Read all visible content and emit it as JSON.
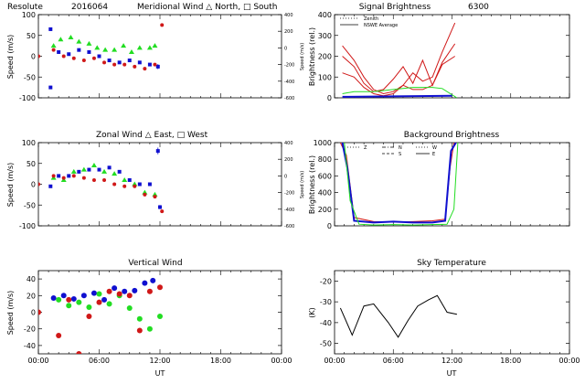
{
  "figure": {
    "site": "Resolute",
    "date": "2016064",
    "xlabel": "UT",
    "xticks": [
      "00:00",
      "06:00",
      "12:00",
      "18:00",
      "00:00"
    ]
  },
  "chart_data": [
    {
      "id": "meridional",
      "type": "scatter",
      "title": "Meridional Wind   △ North, □ South",
      "ylabel": "Speed (m/s)",
      "ylim": [
        -100,
        100
      ],
      "yticks": [
        -100,
        -50,
        0,
        50,
        100
      ],
      "y2label": "Speed (m/s)",
      "y2lim": [
        -600,
        400
      ],
      "y2ticks": [
        -600,
        -400,
        -200,
        0,
        200,
        400
      ],
      "xlim": [
        0,
        24
      ],
      "colors": {
        "zenith": "#d01818",
        "north": "#22dd22",
        "south": "#1010d0"
      },
      "series": [
        {
          "key": "south",
          "marker": "square",
          "x": [
            1.2,
            2.0,
            3.0,
            4.0,
            5.0,
            6.0,
            7.0,
            8.0,
            9.0,
            10.0,
            11.0,
            11.8
          ],
          "y": [
            65,
            10,
            5,
            15,
            10,
            0,
            -10,
            -15,
            -10,
            -15,
            -20,
            -25
          ],
          "y_err": [
            4,
            4,
            3,
            3,
            3,
            3,
            3,
            3,
            3,
            3,
            3,
            6
          ]
        },
        {
          "key": "north",
          "marker": "triangle",
          "x": [
            1.5,
            2.2,
            3.2,
            4.0,
            5.0,
            5.8,
            6.6,
            7.5,
            8.4,
            9.2,
            10.0,
            11.0,
            11.5
          ],
          "y": [
            25,
            40,
            45,
            35,
            30,
            20,
            15,
            15,
            25,
            10,
            20,
            20,
            25
          ]
        },
        {
          "key": "zenith",
          "marker": "circle",
          "x": [
            0.0,
            1.5,
            2.5,
            3.5,
            4.5,
            5.5,
            6.5,
            7.5,
            8.5,
            9.5,
            10.5,
            11.5,
            12.2
          ],
          "y": [
            0,
            15,
            0,
            -5,
            -10,
            -5,
            -15,
            -20,
            -20,
            -25,
            -30,
            -20,
            75
          ]
        },
        {
          "key": "outlier",
          "marker": "square",
          "x": [
            1.2
          ],
          "y": [
            -75
          ],
          "y_err": [
            4
          ]
        }
      ]
    },
    {
      "id": "signal",
      "type": "line",
      "title": "Signal Brightness",
      "wavelength": "6300",
      "ylabel": "Brightness (rel.)",
      "ylim": [
        0,
        400
      ],
      "yticks": [
        0,
        100,
        200,
        300,
        400
      ],
      "xlim": [
        0,
        24
      ],
      "legend": [
        {
          "label": "Zenith",
          "style": "dotted"
        },
        {
          "label": "NSWE Average",
          "style": "solid"
        }
      ],
      "series": [
        {
          "key": "red1",
          "color": "#d01818",
          "x": [
            0.8,
            2,
            3,
            4,
            5,
            6,
            7,
            8,
            9,
            10,
            11,
            12.3
          ],
          "y": [
            250,
            180,
            100,
            40,
            20,
            30,
            60,
            120,
            80,
            100,
            220,
            360
          ]
        },
        {
          "key": "red2",
          "color": "#d01818",
          "x": [
            0.8,
            2,
            3,
            4,
            5,
            6,
            7,
            8,
            9,
            10,
            11,
            12.3
          ],
          "y": [
            200,
            150,
            70,
            30,
            40,
            90,
            150,
            70,
            180,
            60,
            170,
            260
          ]
        },
        {
          "key": "red3",
          "color": "#d01818",
          "x": [
            0.8,
            2,
            3,
            4,
            5,
            6,
            7,
            8,
            9,
            10,
            11,
            12.3
          ],
          "y": [
            120,
            100,
            50,
            20,
            10,
            20,
            60,
            40,
            40,
            60,
            160,
            200
          ]
        },
        {
          "key": "green",
          "color": "#22dd22",
          "x": [
            0.8,
            2,
            4,
            6,
            8,
            10,
            11,
            12.5
          ],
          "y": [
            20,
            30,
            30,
            40,
            50,
            50,
            45,
            0
          ]
        },
        {
          "key": "blue",
          "color": "#1010d0",
          "x": [
            0.8,
            12
          ],
          "y": [
            5,
            10
          ]
        }
      ]
    },
    {
      "id": "zonal",
      "type": "scatter",
      "title": "Zonal Wind      △ East, □ West",
      "ylabel": "Speed (m/s)",
      "ylim": [
        -100,
        100
      ],
      "yticks": [
        -100,
        -50,
        0,
        50,
        100
      ],
      "y2label": "Speed (m/s)",
      "y2lim": [
        -600,
        400
      ],
      "y2ticks": [
        -600,
        -400,
        -200,
        0,
        200,
        400
      ],
      "xlim": [
        0,
        24
      ],
      "colors": {
        "zenith": "#d01818",
        "east": "#22dd22",
        "west": "#1010d0"
      },
      "series": [
        {
          "key": "west",
          "marker": "square",
          "x": [
            1.2,
            2.0,
            3.0,
            4.0,
            5.0,
            6.0,
            7.0,
            8.0,
            9.0,
            10.0,
            11.0,
            11.8
          ],
          "y": [
            -5,
            20,
            20,
            30,
            35,
            35,
            40,
            30,
            10,
            0,
            0,
            80
          ],
          "y_err": [
            3,
            4,
            3,
            3,
            3,
            3,
            3,
            3,
            3,
            3,
            3,
            8
          ]
        },
        {
          "key": "east",
          "marker": "triangle",
          "x": [
            1.5,
            2.5,
            3.5,
            4.5,
            5.5,
            6.5,
            7.5,
            8.5,
            9.5,
            10.5,
            11.5
          ],
          "y": [
            15,
            10,
            30,
            35,
            45,
            30,
            25,
            10,
            0,
            -20,
            -25
          ]
        },
        {
          "key": "zenith",
          "marker": "circle",
          "x": [
            0.0,
            1.5,
            2.5,
            3.5,
            4.5,
            5.5,
            6.5,
            7.5,
            8.5,
            9.5,
            10.5,
            11.5,
            12.2
          ],
          "y": [
            0,
            20,
            15,
            20,
            15,
            10,
            10,
            0,
            -5,
            -5,
            -25,
            -30,
            -65
          ]
        },
        {
          "key": "west_late",
          "marker": "square",
          "x": [
            12.0
          ],
          "y": [
            -55
          ],
          "y_err": [
            5
          ]
        }
      ]
    },
    {
      "id": "background",
      "type": "line",
      "title": "Background Brightness",
      "ylabel": "Brightness (rel.)",
      "ylim": [
        0,
        1000
      ],
      "yticks": [
        0,
        200,
        400,
        600,
        800,
        1000
      ],
      "xlim": [
        0,
        24
      ],
      "legend": [
        {
          "label": "Z",
          "style": "dotted"
        },
        {
          "label": "N",
          "style": "dashdot"
        },
        {
          "label": "S",
          "style": "dashed"
        },
        {
          "label": "W",
          "style": "dotted"
        },
        {
          "label": "E",
          "style": "solid"
        }
      ],
      "series": [
        {
          "key": "red",
          "color": "#d01818",
          "x": [
            0.6,
            1.2,
            2,
            4,
            6,
            8,
            10,
            11.3,
            11.8,
            12.2
          ],
          "y": [
            1000,
            850,
            100,
            50,
            45,
            50,
            60,
            80,
            700,
            1000
          ]
        },
        {
          "key": "blue",
          "color": "#1010d0",
          "x": [
            0.8,
            1.3,
            2,
            4,
            6,
            8,
            10,
            11.3,
            11.9,
            12.4
          ],
          "y": [
            1000,
            700,
            60,
            40,
            50,
            40,
            40,
            60,
            900,
            1000
          ]
        },
        {
          "key": "green",
          "color": "#22dd22",
          "x": [
            1.0,
            1.6,
            2.5,
            4,
            6,
            8,
            10,
            11.5,
            12.2,
            12.6
          ],
          "y": [
            1000,
            300,
            20,
            10,
            15,
            10,
            15,
            20,
            200,
            1000
          ]
        }
      ]
    },
    {
      "id": "vertical",
      "type": "scatter",
      "title": "Vertical Wind",
      "ylabel": "Speed (m/s)",
      "ylim": [
        -50,
        50
      ],
      "yticks": [
        -40,
        -20,
        0,
        20,
        40
      ],
      "xlim": [
        0,
        24
      ],
      "colors": {
        "zenith": "#d01818",
        "green": "#22dd22",
        "blue": "#1010d0"
      },
      "series": [
        {
          "key": "blue",
          "marker": "circle",
          "x": [
            1.5,
            2.5,
            3.5,
            4.5,
            5.5,
            6.5,
            7.5,
            8.5,
            9.5,
            10.5,
            11.3
          ],
          "y": [
            17,
            20,
            16,
            20,
            23,
            15,
            29,
            25,
            26,
            35,
            38
          ]
        },
        {
          "key": "green",
          "marker": "circle",
          "x": [
            2.0,
            3.0,
            4.0,
            5.0,
            6.0,
            7.0,
            8.0,
            9.0,
            10.0,
            11.0,
            12.0
          ],
          "y": [
            15,
            8,
            12,
            6,
            22,
            10,
            20,
            5,
            -8,
            -20,
            -5
          ]
        },
        {
          "key": "zenith",
          "marker": "circle",
          "x": [
            0.0,
            2.0,
            3.0,
            4.0,
            5.0,
            6.0,
            7.0,
            8.0,
            9.0,
            10.0,
            11.0,
            12.0
          ],
          "y": [
            0,
            -28,
            15,
            -50,
            -5,
            12,
            25,
            22,
            20,
            -22,
            25,
            30
          ]
        }
      ]
    },
    {
      "id": "skytemp",
      "type": "line",
      "title": "Sky Temperature",
      "ylabel": "(K)",
      "ylim": [
        -55,
        -15
      ],
      "yticks": [
        -50,
        -40,
        -30,
        -20
      ],
      "xlim": [
        0,
        24
      ],
      "series": [
        {
          "key": "temp",
          "color": "#000000",
          "x": [
            0.6,
            1.8,
            3.0,
            4.0,
            5.5,
            6.5,
            7.5,
            8.5,
            9.6,
            10.5,
            11.5,
            12.5
          ],
          "y": [
            -33,
            -46,
            -32,
            -31,
            -40,
            -47,
            -39,
            -32,
            -29,
            -27,
            -35,
            -36
          ]
        }
      ]
    }
  ]
}
